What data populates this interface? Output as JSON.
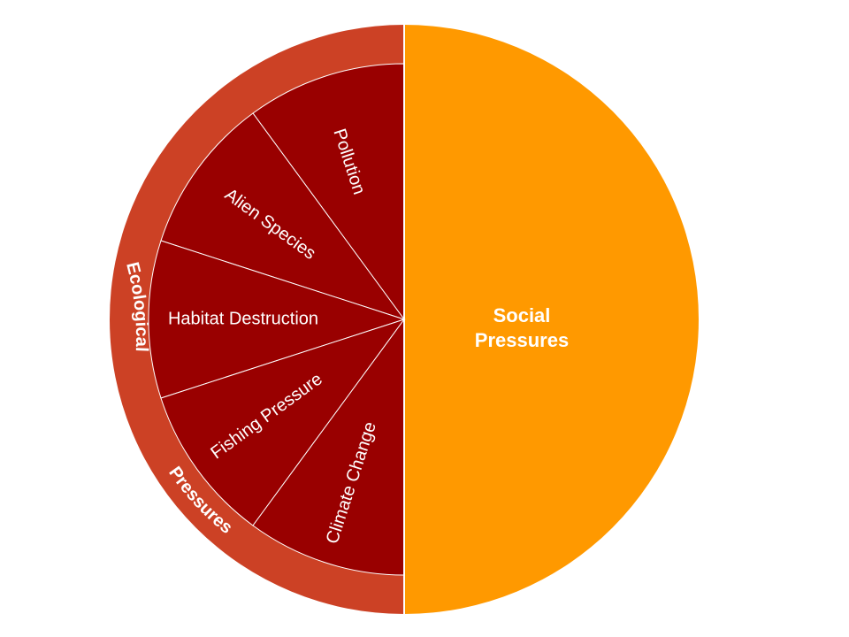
{
  "colors": {
    "social": "#ff9900",
    "ring": "#cc4125",
    "sectors": "#990000",
    "divider": "#ffffff",
    "text": "#ffffff"
  },
  "social_label": [
    "Social",
    "Pressures"
  ],
  "ring_label": {
    "word1": "Ecological",
    "word2": "Pressures"
  },
  "sectors": [
    {
      "label": "Pollution"
    },
    {
      "label": "Alien Species"
    },
    {
      "label": "Habitat Destruction"
    },
    {
      "label": "Fishing Pressure"
    },
    {
      "label": "Climate Change"
    }
  ]
}
